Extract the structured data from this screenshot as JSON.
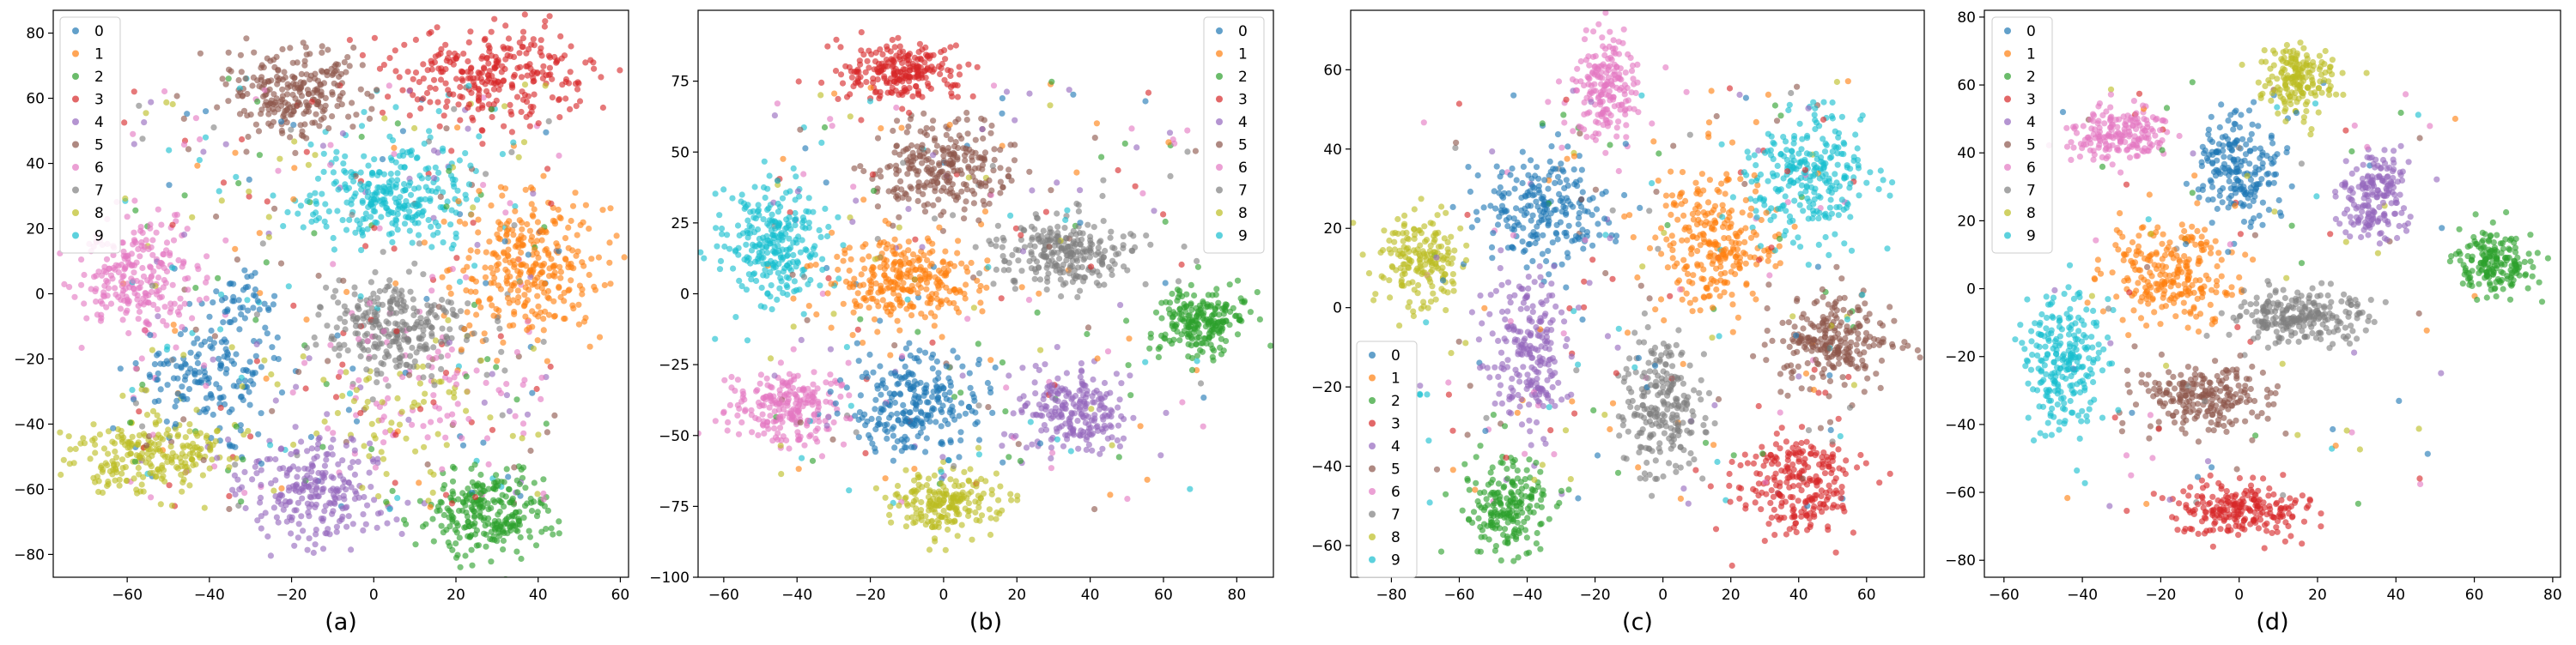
{
  "figure": {
    "panels": [
      {
        "caption": "(a)"
      },
      {
        "caption": "(b)"
      },
      {
        "caption": "(c)"
      },
      {
        "caption": "(d)"
      }
    ]
  },
  "chart_data": [
    {
      "type": "scatter",
      "title": "",
      "caption": "(a)",
      "xlabel": "",
      "ylabel": "",
      "xlim": [
        -78,
        62
      ],
      "ylim": [
        -87,
        87
      ],
      "xticks": [
        -60,
        -40,
        -20,
        0,
        20,
        40,
        60
      ],
      "yticks": [
        -80,
        -60,
        -40,
        -20,
        0,
        20,
        40,
        60,
        80
      ],
      "legend": {
        "placement": "top-left",
        "entries": [
          "0",
          "1",
          "2",
          "3",
          "4",
          "5",
          "6",
          "7",
          "8",
          "9"
        ]
      },
      "grid": false,
      "series": [
        {
          "name": "0",
          "color": "#1f77b4",
          "clusters": [
            {
              "cx": -40,
              "cy": -25,
              "sx": 9,
              "sy": 8,
              "n": 160
            },
            {
              "cx": -33,
              "cy": -3,
              "sx": 4,
              "sy": 4,
              "n": 40
            }
          ]
        },
        {
          "name": "1",
          "color": "#ff7f0e",
          "clusters": [
            {
              "cx": 38,
              "cy": 8,
              "sx": 9,
              "sy": 11,
              "n": 300
            }
          ]
        },
        {
          "name": "2",
          "color": "#2ca02c",
          "clusters": [
            {
              "cx": 28,
              "cy": -67,
              "sx": 8,
              "sy": 7,
              "n": 260
            }
          ]
        },
        {
          "name": "3",
          "color": "#d62728",
          "clusters": [
            {
              "cx": 30,
              "cy": 67,
              "sx": 12,
              "sy": 7,
              "n": 280
            }
          ]
        },
        {
          "name": "4",
          "color": "#9467bd",
          "clusters": [
            {
              "cx": -15,
              "cy": -60,
              "sx": 9,
              "sy": 9,
              "n": 240
            }
          ]
        },
        {
          "name": "5",
          "color": "#8c564b",
          "clusters": [
            {
              "cx": -18,
              "cy": 62,
              "sx": 9,
              "sy": 7,
              "n": 240
            }
          ]
        },
        {
          "name": "6",
          "color": "#e377c2",
          "clusters": [
            {
              "cx": -58,
              "cy": 5,
              "sx": 7,
              "sy": 8,
              "n": 230
            },
            {
              "cx": 10,
              "cy": -30,
              "sx": 14,
              "sy": 12,
              "n": 80
            }
          ]
        },
        {
          "name": "7",
          "color": "#7f7f7f",
          "clusters": [
            {
              "cx": 5,
              "cy": -10,
              "sx": 9,
              "sy": 7,
              "n": 280
            }
          ]
        },
        {
          "name": "8",
          "color": "#bcbd22",
          "clusters": [
            {
              "cx": -55,
              "cy": -50,
              "sx": 9,
              "sy": 6,
              "n": 230
            },
            {
              "cx": 5,
              "cy": -35,
              "sx": 14,
              "sy": 12,
              "n": 60
            }
          ]
        },
        {
          "name": "9",
          "color": "#17becf",
          "clusters": [
            {
              "cx": 5,
              "cy": 30,
              "sx": 10,
              "sy": 8,
              "n": 280
            }
          ]
        }
      ],
      "noise_points": 450
    },
    {
      "type": "scatter",
      "title": "",
      "caption": "(b)",
      "xlabel": "",
      "ylabel": "",
      "xlim": [
        -67,
        90
      ],
      "ylim": [
        -100,
        100
      ],
      "xticks": [
        -60,
        -40,
        -20,
        0,
        20,
        40,
        60,
        80
      ],
      "yticks": [
        -100,
        -75,
        -50,
        -25,
        0,
        25,
        50,
        75
      ],
      "legend": {
        "placement": "top-right",
        "entries": [
          "0",
          "1",
          "2",
          "3",
          "4",
          "5",
          "6",
          "7",
          "8",
          "9"
        ]
      },
      "grid": false,
      "series": [
        {
          "name": "0",
          "color": "#1f77b4",
          "clusters": [
            {
              "cx": -8,
              "cy": -38,
              "sx": 9,
              "sy": 9,
              "n": 250
            }
          ]
        },
        {
          "name": "1",
          "color": "#ff7f0e",
          "clusters": [
            {
              "cx": -10,
              "cy": 5,
              "sx": 10,
              "sy": 8,
              "n": 280
            }
          ]
        },
        {
          "name": "2",
          "color": "#2ca02c",
          "clusters": [
            {
              "cx": 70,
              "cy": -10,
              "sx": 6,
              "sy": 6,
              "n": 220
            }
          ]
        },
        {
          "name": "3",
          "color": "#d62728",
          "clusters": [
            {
              "cx": -12,
              "cy": 78,
              "sx": 8,
              "sy": 5,
              "n": 230
            }
          ]
        },
        {
          "name": "4",
          "color": "#9467bd",
          "clusters": [
            {
              "cx": 35,
              "cy": -42,
              "sx": 7,
              "sy": 8,
              "n": 220
            }
          ]
        },
        {
          "name": "5",
          "color": "#8c564b",
          "clusters": [
            {
              "cx": 0,
              "cy": 44,
              "sx": 10,
              "sy": 8,
              "n": 260
            }
          ]
        },
        {
          "name": "6",
          "color": "#e377c2",
          "clusters": [
            {
              "cx": -43,
              "cy": -40,
              "sx": 8,
              "sy": 6,
              "n": 230
            }
          ]
        },
        {
          "name": "7",
          "color": "#7f7f7f",
          "clusters": [
            {
              "cx": 32,
              "cy": 15,
              "sx": 9,
              "sy": 6,
              "n": 250
            }
          ]
        },
        {
          "name": "8",
          "color": "#bcbd22",
          "clusters": [
            {
              "cx": 0,
              "cy": -73,
              "sx": 7,
              "sy": 6,
              "n": 200
            }
          ]
        },
        {
          "name": "9",
          "color": "#17becf",
          "clusters": [
            {
              "cx": -47,
              "cy": 18,
              "sx": 7,
              "sy": 10,
              "n": 260
            }
          ]
        }
      ],
      "noise_points": 260
    },
    {
      "type": "scatter",
      "title": "",
      "caption": "(c)",
      "xlabel": "",
      "ylabel": "",
      "xlim": [
        -92,
        77
      ],
      "ylim": [
        -68,
        75
      ],
      "xticks": [
        -80,
        -60,
        -40,
        -20,
        0,
        20,
        40,
        60
      ],
      "yticks": [
        -60,
        -40,
        -20,
        0,
        20,
        40,
        60
      ],
      "legend": {
        "placement": "bottom-left",
        "entries": [
          "0",
          "1",
          "2",
          "3",
          "4",
          "5",
          "6",
          "7",
          "8",
          "9"
        ]
      },
      "grid": false,
      "series": [
        {
          "name": "0",
          "color": "#1f77b4",
          "clusters": [
            {
              "cx": -35,
              "cy": 25,
              "sx": 10,
              "sy": 7,
              "n": 220
            }
          ]
        },
        {
          "name": "1",
          "color": "#ff7f0e",
          "clusters": [
            {
              "cx": 15,
              "cy": 15,
              "sx": 9,
              "sy": 10,
              "n": 260
            }
          ]
        },
        {
          "name": "2",
          "color": "#2ca02c",
          "clusters": [
            {
              "cx": -45,
              "cy": -50,
              "sx": 6,
              "sy": 6,
              "n": 200
            }
          ]
        },
        {
          "name": "3",
          "color": "#d62728",
          "clusters": [
            {
              "cx": 40,
              "cy": -45,
              "sx": 9,
              "sy": 7,
              "n": 240
            }
          ]
        },
        {
          "name": "4",
          "color": "#9467bd",
          "clusters": [
            {
              "cx": -40,
              "cy": -10,
              "sx": 6,
              "sy": 10,
              "n": 220
            }
          ]
        },
        {
          "name": "5",
          "color": "#8c564b",
          "clusters": [
            {
              "cx": 50,
              "cy": -8,
              "sx": 9,
              "sy": 6,
              "n": 240
            }
          ]
        },
        {
          "name": "6",
          "color": "#e377c2",
          "clusters": [
            {
              "cx": -17,
              "cy": 54,
              "sx": 5,
              "sy": 7,
              "n": 190
            }
          ]
        },
        {
          "name": "7",
          "color": "#7f7f7f",
          "clusters": [
            {
              "cx": 0,
              "cy": -25,
              "sx": 6,
              "sy": 9,
              "n": 230
            }
          ]
        },
        {
          "name": "8",
          "color": "#bcbd22",
          "clusters": [
            {
              "cx": -72,
              "cy": 12,
              "sx": 6,
              "sy": 6,
              "n": 180
            }
          ]
        },
        {
          "name": "9",
          "color": "#17becf",
          "clusters": [
            {
              "cx": 43,
              "cy": 33,
              "sx": 9,
              "sy": 8,
              "n": 260
            }
          ]
        }
      ],
      "noise_points": 230
    },
    {
      "type": "scatter",
      "title": "",
      "caption": "(d)",
      "xlabel": "",
      "ylabel": "",
      "xlim": [
        -65,
        82
      ],
      "ylim": [
        -85,
        82
      ],
      "xticks": [
        -60,
        -40,
        -20,
        0,
        20,
        40,
        60,
        80
      ],
      "yticks": [
        -80,
        -60,
        -40,
        -20,
        0,
        20,
        40,
        60,
        80
      ],
      "legend": {
        "placement": "top-left",
        "entries": [
          "0",
          "1",
          "2",
          "3",
          "4",
          "5",
          "6",
          "7",
          "8",
          "9"
        ]
      },
      "grid": false,
      "series": [
        {
          "name": "0",
          "color": "#1f77b4",
          "clusters": [
            {
              "cx": 0,
              "cy": 35,
              "sx": 5,
              "sy": 9,
              "n": 200
            }
          ]
        },
        {
          "name": "1",
          "color": "#ff7f0e",
          "clusters": [
            {
              "cx": -18,
              "cy": 5,
              "sx": 8,
              "sy": 7,
              "n": 240
            }
          ]
        },
        {
          "name": "2",
          "color": "#2ca02c",
          "clusters": [
            {
              "cx": 65,
              "cy": 8,
              "sx": 5,
              "sy": 5,
              "n": 180
            }
          ]
        },
        {
          "name": "3",
          "color": "#d62728",
          "clusters": [
            {
              "cx": 0,
              "cy": -65,
              "sx": 9,
              "sy": 4,
              "n": 220
            }
          ]
        },
        {
          "name": "4",
          "color": "#9467bd",
          "clusters": [
            {
              "cx": 35,
              "cy": 28,
              "sx": 4,
              "sy": 7,
              "n": 180
            }
          ]
        },
        {
          "name": "5",
          "color": "#8c564b",
          "clusters": [
            {
              "cx": -10,
              "cy": -32,
              "sx": 8,
              "sy": 5,
              "n": 220
            }
          ]
        },
        {
          "name": "6",
          "color": "#e377c2",
          "clusters": [
            {
              "cx": -30,
              "cy": 45,
              "sx": 6,
              "sy": 4,
              "n": 180
            }
          ]
        },
        {
          "name": "7",
          "color": "#7f7f7f",
          "clusters": [
            {
              "cx": 15,
              "cy": -8,
              "sx": 9,
              "sy": 4,
              "n": 240
            }
          ]
        },
        {
          "name": "8",
          "color": "#bcbd22",
          "clusters": [
            {
              "cx": 15,
              "cy": 62,
              "sx": 5,
              "sy": 5,
              "n": 180
            }
          ]
        },
        {
          "name": "9",
          "color": "#17becf",
          "clusters": [
            {
              "cx": -45,
              "cy": -22,
              "sx": 5,
              "sy": 10,
              "n": 240
            }
          ]
        }
      ],
      "noise_points": 120
    }
  ]
}
